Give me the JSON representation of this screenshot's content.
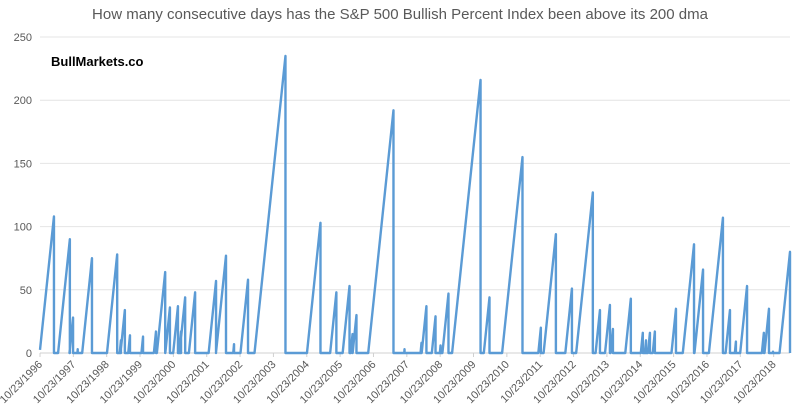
{
  "chart_data": {
    "type": "line",
    "title": "How many consecutive days has the S&P 500 Bullish Percent Index been above its 200 dma",
    "annotation": "BullMarkets.co",
    "xlabel": "",
    "ylabel": "",
    "ylim": [
      0,
      250
    ],
    "yticks": [
      0,
      50,
      100,
      150,
      200,
      250
    ],
    "xlim": [
      "1996-10-23",
      "2019-04-20"
    ],
    "xticks": [
      "10/23/1996",
      "10/23/1997",
      "10/23/1998",
      "10/23/1999",
      "10/23/2000",
      "10/23/2001",
      "10/23/2002",
      "10/23/2003",
      "10/23/2004",
      "10/23/2005",
      "10/23/2006",
      "10/23/2007",
      "10/23/2008",
      "10/23/2009",
      "10/23/2010",
      "10/23/2011",
      "10/23/2012",
      "10/23/2013",
      "10/23/2014",
      "10/23/2015",
      "10/23/2016",
      "10/23/2017",
      "10/23/2018"
    ],
    "grid": "horizontal",
    "color": "#5b9bd5",
    "series_description": "streaks: each streak counts up one per trading day to its peak, then resets to 0",
    "streaks": [
      {
        "end": "1997-03-25",
        "days": 108
      },
      {
        "end": "1997-09-15",
        "days": 90
      },
      {
        "end": "1997-10-20",
        "days": 28
      },
      {
        "end": "1997-12-10",
        "days": 3
      },
      {
        "end": "1998-05-15",
        "days": 75
      },
      {
        "end": "1999-02-15",
        "days": 78
      },
      {
        "end": "1999-03-28",
        "days": 10
      },
      {
        "end": "1999-05-10",
        "days": 34
      },
      {
        "end": "1999-07-05",
        "days": 14
      },
      {
        "end": "1999-11-25",
        "days": 13
      },
      {
        "end": "2000-04-15",
        "days": 17
      },
      {
        "end": "2000-07-25",
        "days": 64
      },
      {
        "end": "2000-09-15",
        "days": 36
      },
      {
        "end": "2000-12-12",
        "days": 37
      },
      {
        "end": "2001-01-15",
        "days": 17
      },
      {
        "end": "2001-03-01",
        "days": 44
      },
      {
        "end": "2001-06-18",
        "days": 48
      },
      {
        "end": "2002-02-02",
        "days": 57
      },
      {
        "end": "2002-05-22",
        "days": 77
      },
      {
        "end": "2002-08-18",
        "days": 7
      },
      {
        "end": "2003-01-18",
        "days": 58
      },
      {
        "end": "2004-03-03",
        "days": 235
      },
      {
        "end": "2005-03-22",
        "days": 103
      },
      {
        "end": "2005-09-12",
        "days": 48
      },
      {
        "end": "2006-02-03",
        "days": 53
      },
      {
        "end": "2006-03-08",
        "days": 15
      },
      {
        "end": "2006-04-20",
        "days": 30
      },
      {
        "end": "2007-05-30",
        "days": 192
      },
      {
        "end": "2007-09-28",
        "days": 3
      },
      {
        "end": "2008-04-01",
        "days": 8
      },
      {
        "end": "2008-05-25",
        "days": 37
      },
      {
        "end": "2008-09-02",
        "days": 29
      },
      {
        "end": "2008-10-27",
        "days": 6
      },
      {
        "end": "2009-01-22",
        "days": 47
      },
      {
        "end": "2010-01-08",
        "days": 216
      },
      {
        "end": "2010-04-16",
        "days": 44
      },
      {
        "end": "2011-04-12",
        "days": 155
      },
      {
        "end": "2011-10-30",
        "days": 20
      },
      {
        "end": "2012-04-12",
        "days": 94
      },
      {
        "end": "2012-10-05",
        "days": 51
      },
      {
        "end": "2013-05-22",
        "days": 127
      },
      {
        "end": "2013-08-08",
        "days": 34
      },
      {
        "end": "2013-11-25",
        "days": 38
      },
      {
        "end": "2013-12-28",
        "days": 19
      },
      {
        "end": "2014-07-12",
        "days": 43
      },
      {
        "end": "2014-11-20",
        "days": 16
      },
      {
        "end": "2014-12-25",
        "days": 10
      },
      {
        "end": "2015-02-06",
        "days": 16
      },
      {
        "end": "2015-04-01",
        "days": 17
      },
      {
        "end": "2015-11-18",
        "days": 35
      },
      {
        "end": "2016-06-03",
        "days": 86
      },
      {
        "end": "2016-09-10",
        "days": 66
      },
      {
        "end": "2017-04-16",
        "days": 107
      },
      {
        "end": "2017-07-02",
        "days": 34
      },
      {
        "end": "2017-09-05",
        "days": 9
      },
      {
        "end": "2018-01-05",
        "days": 53
      },
      {
        "end": "2018-07-08",
        "days": 16
      },
      {
        "end": "2018-09-02",
        "days": 35
      },
      {
        "end": "2018-10-16",
        "days": 1
      },
      {
        "end": "2019-04-20",
        "days": 80
      }
    ]
  }
}
